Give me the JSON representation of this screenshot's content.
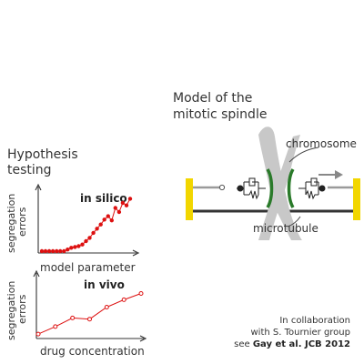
{
  "hypothesis": {
    "heading_line1": "Hypothesis",
    "heading_line2": "testing"
  },
  "colors": {
    "plot_red": "#dd1111",
    "kinetochore_green": "#2a7a2a",
    "anchor_yellow": "#f2d600",
    "chromosome_gray": "#c8c8c8",
    "text_dark": "#333333"
  },
  "chart_data": [
    {
      "type": "line",
      "title": "in silico",
      "xlabel": "model parameter",
      "ylabel_line1": "segregation",
      "ylabel_line2": "errors",
      "x": [
        1,
        2,
        3,
        4,
        5,
        6,
        7,
        8,
        9,
        10,
        11,
        12,
        13,
        14,
        15,
        16,
        17,
        18,
        19,
        20,
        21,
        22,
        23,
        24,
        25
      ],
      "values": [
        0,
        0,
        0,
        0,
        0,
        0,
        0,
        0.02,
        0.04,
        0.05,
        0.06,
        0.08,
        0.12,
        0.16,
        0.22,
        0.27,
        0.32,
        0.38,
        0.42,
        0.37,
        0.52,
        0.47,
        0.58,
        0.55,
        0.63
      ],
      "ylim": [
        0,
        0.7
      ],
      "grid": false,
      "ticks": false
    },
    {
      "type": "line",
      "title": "in vivo",
      "xlabel": "drug concentration",
      "ylabel_line1": "segregation",
      "ylabel_line2": "errors",
      "x": [
        1,
        2,
        3,
        4,
        5,
        6,
        7
      ],
      "values": [
        0.02,
        0.2,
        0.41,
        0.38,
        0.67,
        0.85,
        1.0
      ],
      "ylim": [
        0,
        1.1
      ],
      "grid": false,
      "ticks": false
    }
  ],
  "spindle": {
    "title_line1": "Model of the",
    "title_line2": "mitotic spindle",
    "label_chromosome": "chromosome",
    "label_microtubule": "microtubule"
  },
  "credits": {
    "line1": "In collaboration",
    "line2": "with S. Tournier group",
    "line3_prefix": "see ",
    "line3_ref": "Gay et al. JCB 2012"
  }
}
